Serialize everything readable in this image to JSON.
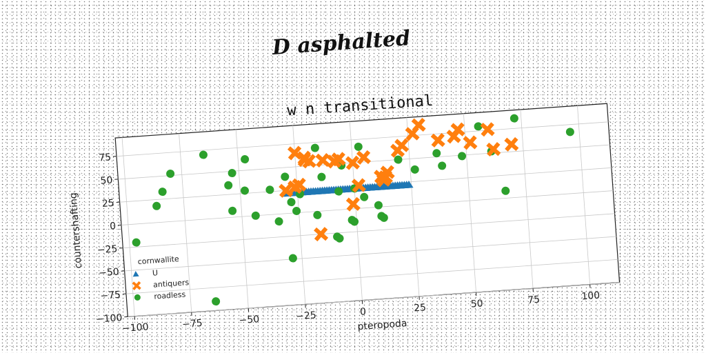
{
  "header": {
    "title": "D asphalted"
  },
  "chart_data": {
    "type": "scatter",
    "title": "w n transitional",
    "xlabel": "pteropoda",
    "ylabel": "countershafting",
    "xlim": [
      -103,
      113
    ],
    "ylim": [
      -100,
      95
    ],
    "xticks": [
      -100,
      -75,
      -50,
      -25,
      0,
      25,
      50,
      75,
      100
    ],
    "yticks": [
      -100,
      -75,
      -50,
      -25,
      0,
      25,
      50,
      75
    ],
    "grid": true,
    "legend": {
      "title": "cornwallite",
      "placement": "bottom-left"
    },
    "series": [
      {
        "name": "U",
        "color": "#1f77b4",
        "marker": "triangle",
        "points": [
          [
            -30,
            22
          ],
          [
            -29,
            22
          ],
          [
            -28,
            22
          ],
          [
            -27,
            22
          ],
          [
            -26,
            22
          ],
          [
            -25,
            22
          ],
          [
            -24,
            22
          ],
          [
            -23,
            22
          ],
          [
            -22,
            22
          ],
          [
            -21,
            22
          ],
          [
            -20,
            22
          ],
          [
            -19,
            22
          ],
          [
            -18,
            22
          ],
          [
            -17,
            22
          ],
          [
            -16,
            22
          ],
          [
            -15,
            22
          ],
          [
            -14,
            22
          ],
          [
            -13,
            22
          ],
          [
            -12,
            22
          ],
          [
            -11,
            22
          ],
          [
            -10,
            22
          ],
          [
            -9,
            22
          ],
          [
            -8,
            22
          ],
          [
            -7,
            22
          ],
          [
            -6,
            22
          ],
          [
            -5,
            22
          ],
          [
            -4,
            22
          ],
          [
            -3,
            22
          ],
          [
            -2,
            22
          ],
          [
            -1,
            22
          ],
          [
            0,
            22
          ],
          [
            1,
            22
          ],
          [
            2,
            22
          ],
          [
            3,
            22
          ],
          [
            4,
            22
          ],
          [
            5,
            22
          ],
          [
            6,
            22
          ],
          [
            7,
            22
          ],
          [
            8,
            22
          ],
          [
            9,
            22
          ],
          [
            10,
            22
          ],
          [
            11,
            22
          ],
          [
            12,
            22
          ],
          [
            13,
            22
          ],
          [
            14,
            22
          ],
          [
            15,
            22
          ],
          [
            16,
            22
          ],
          [
            17,
            22
          ],
          [
            18,
            22
          ],
          [
            19,
            22
          ],
          [
            20,
            22
          ],
          [
            21,
            22
          ],
          [
            22,
            22
          ],
          [
            23,
            22
          ],
          [
            24,
            22
          ]
        ]
      },
      {
        "name": "antiquers",
        "color": "#ff7f0e",
        "marker": "x",
        "points": [
          [
            0,
            50
          ],
          [
            -25,
            65
          ],
          [
            -21,
            57
          ],
          [
            -21,
            59
          ],
          [
            -19,
            55
          ],
          [
            -13,
            55
          ],
          [
            -8,
            53
          ],
          [
            -6,
            55
          ],
          [
            5,
            55
          ],
          [
            20,
            60
          ],
          [
            22,
            65
          ],
          [
            27,
            77
          ],
          [
            30,
            86
          ],
          [
            47,
            78
          ],
          [
            52,
            63
          ],
          [
            38,
            68
          ],
          [
            45,
            71
          ],
          [
            60,
            76
          ],
          [
            62,
            54
          ],
          [
            70,
            58
          ],
          [
            -30,
            25
          ],
          [
            -26,
            28
          ],
          [
            -24,
            30
          ],
          [
            2,
            25
          ],
          [
            14,
            32
          ],
          [
            15,
            37
          ],
          [
            13,
            29
          ],
          [
            12,
            33
          ],
          [
            -1,
            5
          ],
          [
            -16,
            -25
          ]
        ]
      },
      {
        "name": "roadless",
        "color": "#2ca02c",
        "marker": "circle",
        "points": [
          [
            -97,
            -20
          ],
          [
            -87,
            18
          ],
          [
            -84,
            33
          ],
          [
            -80,
            52
          ],
          [
            -65,
            70
          ],
          [
            -55,
            35
          ],
          [
            -54,
            7
          ],
          [
            -53,
            48
          ],
          [
            -48,
            28
          ],
          [
            -47,
            62
          ],
          [
            -44,
            0
          ],
          [
            -37,
            27
          ],
          [
            -34,
            -8
          ],
          [
            -30,
            40
          ],
          [
            -29,
            -49
          ],
          [
            -28,
            12
          ],
          [
            -26,
            2
          ],
          [
            -24,
            20
          ],
          [
            -17,
            -4
          ],
          [
            -16,
            69
          ],
          [
            -14,
            37
          ],
          [
            -9,
            -29
          ],
          [
            -8,
            -31
          ],
          [
            -7,
            20
          ],
          [
            -5,
            48
          ],
          [
            -2,
            -12
          ],
          [
            -1,
            -14
          ],
          [
            0,
            22
          ],
          [
            3,
            67
          ],
          [
            4,
            12
          ],
          [
            10,
            2
          ],
          [
            11,
            -10
          ],
          [
            12,
            -12
          ],
          [
            20,
            50
          ],
          [
            27,
            38
          ],
          [
            37,
            54
          ],
          [
            39,
            40
          ],
          [
            48,
            49
          ],
          [
            56,
            80
          ],
          [
            61,
            52
          ],
          [
            66,
            8
          ],
          [
            72,
            86
          ],
          [
            96,
            67
          ],
          [
            -64,
            -90
          ]
        ]
      }
    ]
  }
}
